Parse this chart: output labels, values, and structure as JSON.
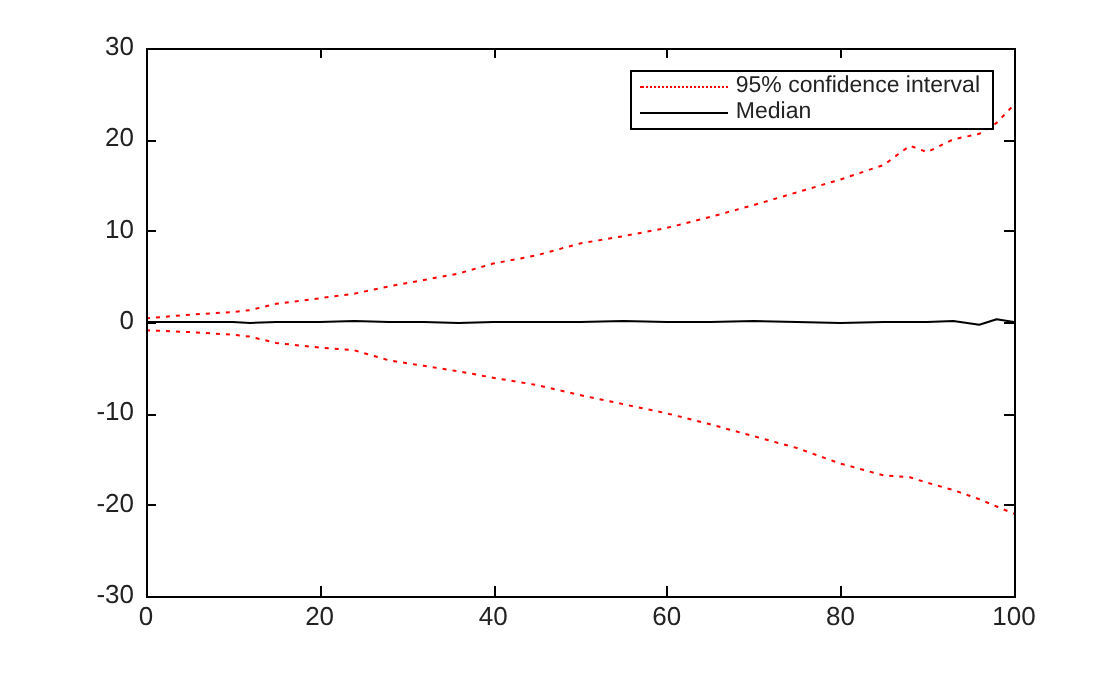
{
  "chart_data": {
    "type": "line",
    "xlim": [
      0,
      100
    ],
    "ylim": [
      -30,
      30
    ],
    "xticks": [
      0,
      20,
      40,
      60,
      80,
      100
    ],
    "yticks": [
      -30,
      -20,
      -10,
      0,
      10,
      20,
      30
    ],
    "grid": false,
    "legend": "top right",
    "marker": "none",
    "x": [
      0,
      5,
      10,
      12,
      15,
      20,
      24,
      28,
      32,
      36,
      40,
      45,
      50,
      55,
      60,
      65,
      70,
      75,
      80,
      85,
      88,
      90,
      93,
      96,
      98,
      100
    ],
    "series": [
      {
        "name": "95% confidence interval",
        "color": "#ff0000",
        "line_style": "dotted",
        "values": [
          0.4,
          0.8,
          1.1,
          1.3,
          2.0,
          2.6,
          3.1,
          3.9,
          4.6,
          5.3,
          6.4,
          7.3,
          8.6,
          9.4,
          10.3,
          11.5,
          12.8,
          14.2,
          15.6,
          17.2,
          19.3,
          18.6,
          20.0,
          20.6,
          21.8,
          23.8
        ]
      },
      {
        "color": "#ff0000",
        "line_style": "dotted",
        "values": [
          -0.9,
          -1.1,
          -1.4,
          -1.6,
          -2.3,
          -2.8,
          -3.1,
          -4.2,
          -4.8,
          -5.4,
          -6.1,
          -6.9,
          -8.0,
          -9.0,
          -10.0,
          -11.2,
          -12.5,
          -13.8,
          -15.5,
          -16.8,
          -17.0,
          -17.6,
          -18.4,
          -19.4,
          -20.2,
          -21.0
        ]
      },
      {
        "name": "Median",
        "color": "#000000",
        "line_style": "solid",
        "values": [
          0,
          0,
          0,
          -0.1,
          0,
          0,
          0.1,
          0,
          0,
          -0.1,
          0,
          0,
          0,
          0.1,
          0,
          0,
          0.1,
          0,
          -0.1,
          0,
          0,
          0,
          0.1,
          -0.3,
          0.3,
          0
        ]
      }
    ]
  }
}
